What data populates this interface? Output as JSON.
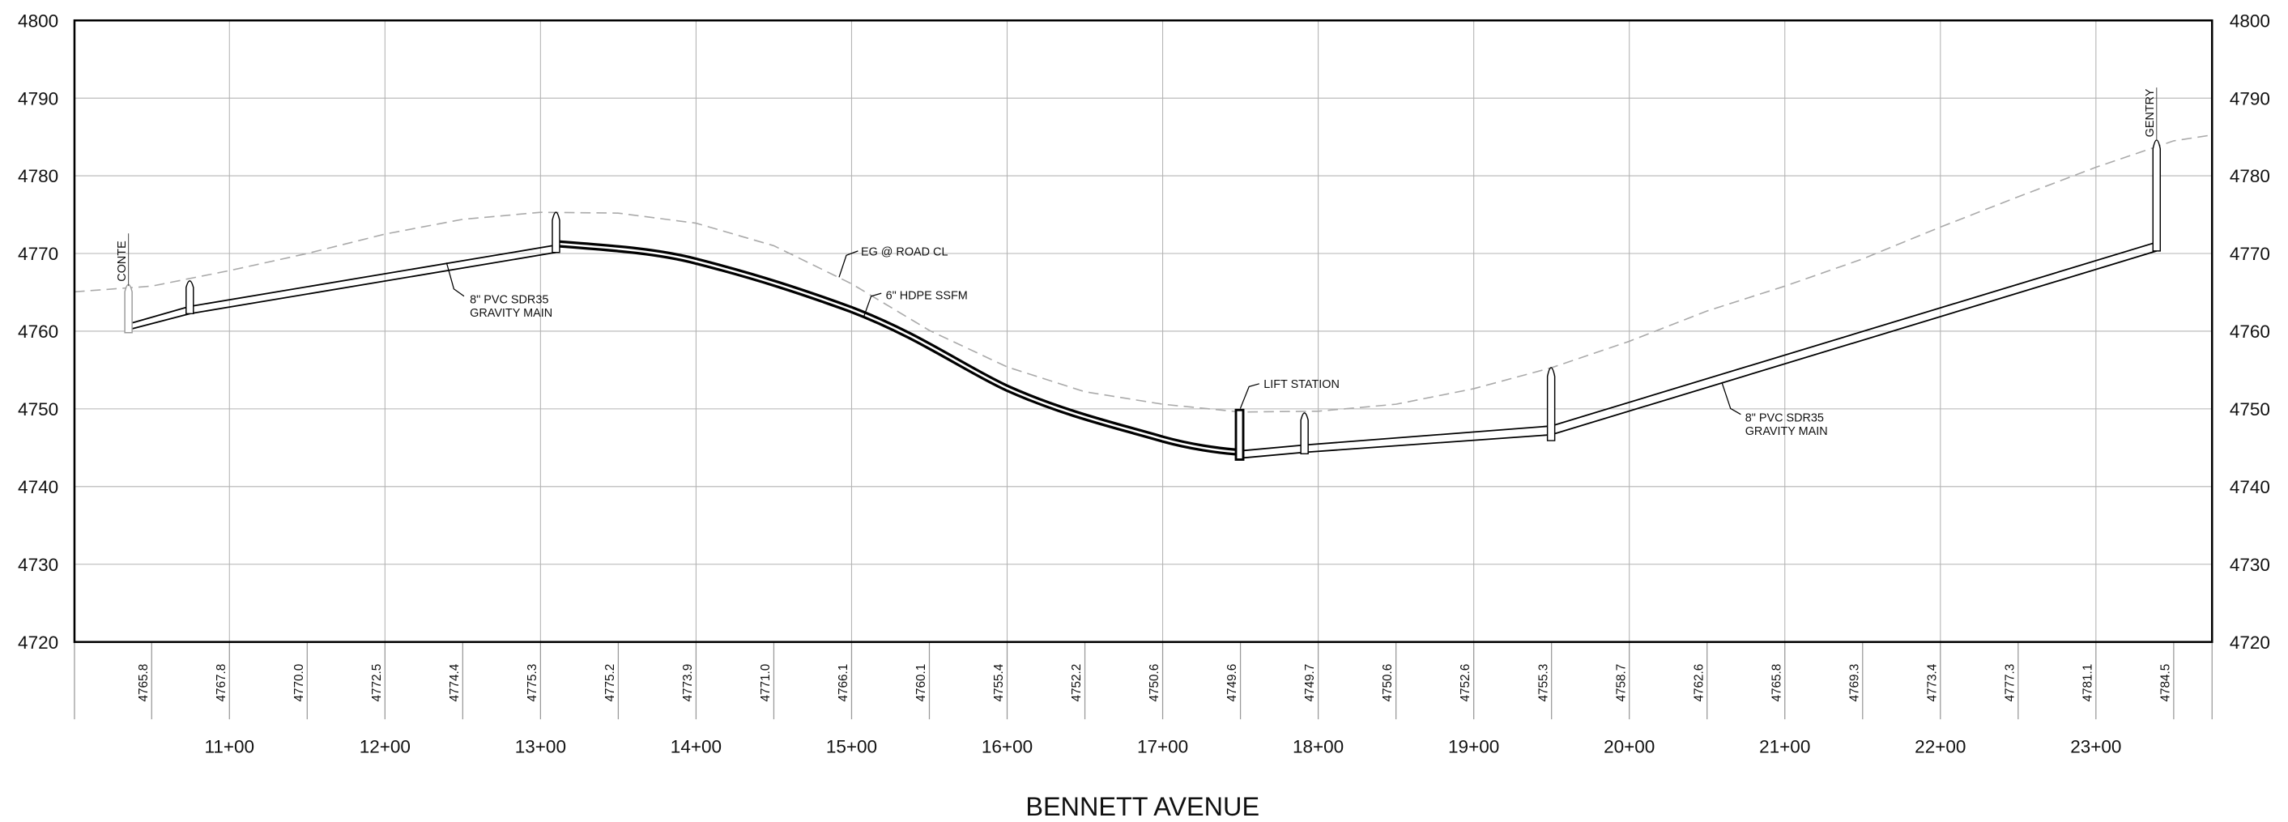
{
  "title": "BENNETT AVENUE",
  "elevation_ticks": [
    4720,
    4730,
    4740,
    4750,
    4760,
    4770,
    4780,
    4790,
    4800
  ],
  "stations": [
    "11+00",
    "12+00",
    "13+00",
    "14+00",
    "15+00",
    "16+00",
    "17+00",
    "18+00",
    "19+00",
    "20+00",
    "21+00",
    "22+00",
    "23+00"
  ],
  "ground_elevations": [
    "4765.8",
    "4767.8",
    "4770.0",
    "4772.5",
    "4774.4",
    "4775.3",
    "4775.2",
    "4773.9",
    "4771.0",
    "4766.1",
    "4760.1",
    "4755.4",
    "4752.2",
    "4750.6",
    "4749.6",
    "4749.7",
    "4750.6",
    "4752.6",
    "4755.3",
    "4758.7",
    "4762.6",
    "4765.8",
    "4769.3",
    "4773.4",
    "4777.3",
    "4781.1",
    "4784.5"
  ],
  "annotations": {
    "start_manhole": "CONTE",
    "end_manhole": "GENTRY",
    "existing_grade": "EG @ ROAD CL",
    "force_main": "6\" HDPE SSFM",
    "lift_station": "LIFT STATION",
    "gravity_main_left": [
      "8\" PVC SDR35",
      "GRAVITY MAIN"
    ],
    "gravity_main_right": [
      "8\" PVC SDR35",
      "GRAVITY MAIN"
    ]
  }
}
